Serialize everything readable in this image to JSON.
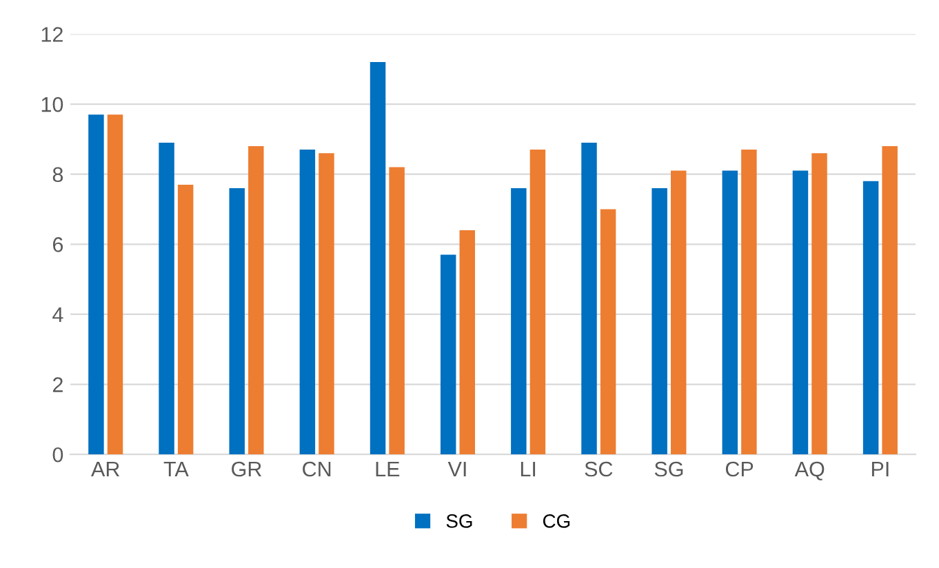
{
  "chart_data": {
    "type": "bar",
    "categories": [
      "AR",
      "TA",
      "GR",
      "CN",
      "LE",
      "VI",
      "LI",
      "SC",
      "SG",
      "CP",
      "AQ",
      "PI"
    ],
    "series": [
      {
        "name": "SG",
        "color": "#0070c0",
        "values": [
          9.7,
          8.9,
          7.6,
          8.7,
          11.2,
          5.7,
          7.6,
          8.9,
          7.6,
          8.1,
          8.1,
          7.8
        ]
      },
      {
        "name": "CG",
        "color": "#ed7d31",
        "values": [
          9.7,
          7.7,
          8.8,
          8.6,
          8.2,
          6.4,
          8.7,
          7.0,
          8.1,
          8.7,
          8.6,
          8.8
        ]
      }
    ],
    "ylim": [
      0,
      12
    ],
    "yticks": [
      0,
      2,
      4,
      6,
      8,
      10,
      12
    ],
    "grid": "y",
    "legend": "bottom"
  }
}
